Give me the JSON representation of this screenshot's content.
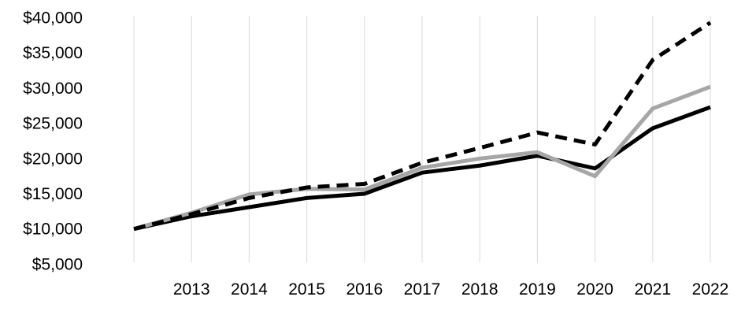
{
  "page": {
    "background": "#FFFFFF"
  },
  "chart_data": {
    "type": "line",
    "categories": [
      "",
      "2013",
      "2014",
      "2015",
      "2016",
      "2017",
      "2018",
      "2019",
      "2020",
      "2021",
      "2022"
    ],
    "series": [
      {
        "name": "black solid line",
        "color": "#000000",
        "line_style": "solid",
        "values": [
          10000,
          11800,
          13100,
          14400,
          15000,
          18000,
          19000,
          20400,
          18600,
          24300,
          27300
        ]
      },
      {
        "name": "gray solid line",
        "color": "#A6A6A6",
        "line_style": "solid",
        "values": [
          10000,
          12300,
          14900,
          15700,
          15600,
          18700,
          20000,
          20900,
          17500,
          27100,
          30200
        ]
      },
      {
        "name": "black dashed line",
        "color": "#000000",
        "line_style": "dashed",
        "values": [
          10000,
          12100,
          14400,
          15900,
          16400,
          19400,
          21500,
          23700,
          22000,
          34000,
          39300
        ]
      }
    ],
    "y_axis": {
      "ticks": [
        {
          "label": "$40,000",
          "value": 40000
        },
        {
          "label": "$35,000",
          "value": 35000
        },
        {
          "label": "$30,000",
          "value": 30000
        },
        {
          "label": "$25,000",
          "value": 25000
        },
        {
          "label": "$20,000",
          "value": 20000
        },
        {
          "label": "$15,000",
          "value": 15000
        },
        {
          "label": "$10,000",
          "value": 10000
        },
        {
          "label": "$5,000",
          "value": 5000
        }
      ],
      "range": [
        5000,
        40000
      ],
      "format": "currency-usd-thousands"
    },
    "grid": {
      "vertical": true,
      "horizontal": false,
      "color": "#D9D9D9"
    },
    "legend": {
      "visible": false
    },
    "text_color": "#000000"
  }
}
